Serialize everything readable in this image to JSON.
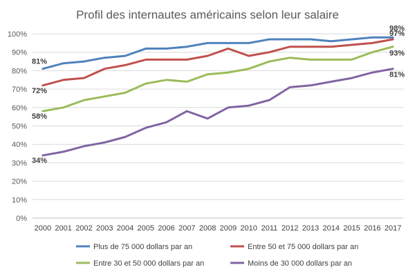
{
  "chart_data": {
    "type": "line",
    "title": "Profil des internautes américains selon leur salaire",
    "xlabel": "",
    "ylabel": "",
    "ylim": [
      0,
      100
    ],
    "y_ticks": [
      0,
      10,
      20,
      30,
      40,
      50,
      60,
      70,
      80,
      90,
      100
    ],
    "y_tick_labels": [
      "0%",
      "10%",
      "20%",
      "30%",
      "40%",
      "50%",
      "60%",
      "70%",
      "80%",
      "90%",
      "100%"
    ],
    "grid": true,
    "legend_position": "bottom",
    "categories": [
      "2000",
      "2001",
      "2002",
      "2003",
      "2004",
      "2005",
      "2006",
      "2007",
      "2008",
      "2009",
      "2010",
      "2011",
      "2012",
      "2013",
      "2014",
      "2015",
      "2016",
      "2017"
    ],
    "series": [
      {
        "name": "Plus de 75 000 dollars par an",
        "color": "#4f81bd",
        "values": [
          81,
          84,
          85,
          87,
          88,
          92,
          92,
          93,
          95,
          95,
          95,
          97,
          97,
          97,
          96,
          97,
          98,
          98
        ],
        "start_label": "81%",
        "end_label": "98%"
      },
      {
        "name": "Entre 50 et 75 000 dollars par an",
        "color": "#c0504d",
        "values": [
          72,
          75,
          76,
          81,
          83,
          86,
          86,
          86,
          88,
          92,
          88,
          90,
          93,
          93,
          93,
          94,
          95,
          97
        ],
        "start_label": "72%",
        "end_label": "97%"
      },
      {
        "name": "Entre 30 et 50 000 dollars par an",
        "color": "#9bbb59",
        "values": [
          58,
          60,
          64,
          66,
          68,
          73,
          75,
          74,
          78,
          79,
          81,
          85,
          87,
          86,
          86,
          86,
          90,
          93
        ],
        "start_label": "58%",
        "end_label": "93%"
      },
      {
        "name": "Moins de 30 000 dollars par an",
        "color": "#8064a2",
        "values": [
          34,
          36,
          39,
          41,
          44,
          49,
          52,
          58,
          54,
          60,
          61,
          64,
          71,
          72,
          74,
          76,
          79,
          81
        ],
        "start_label": "34%",
        "end_label": "81%"
      }
    ]
  }
}
